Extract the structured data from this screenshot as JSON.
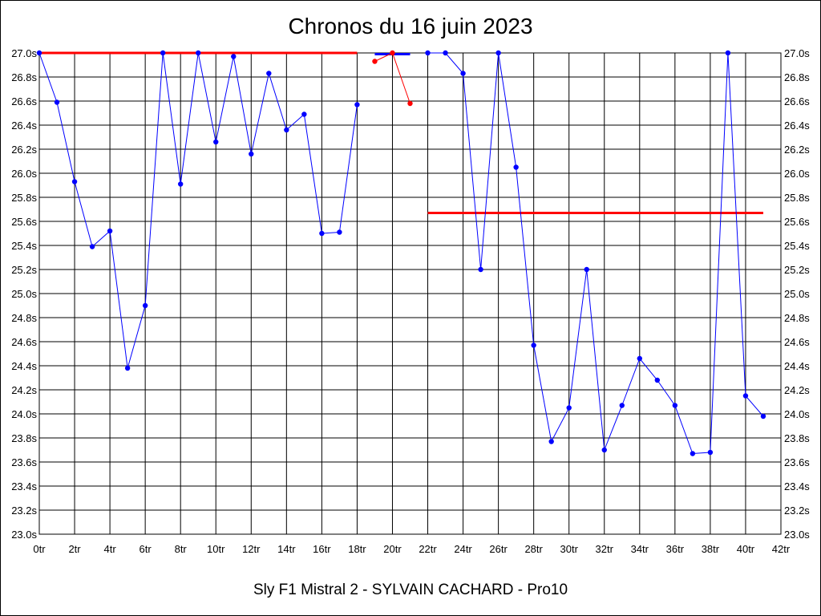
{
  "chart_data": {
    "type": "line",
    "title": "Chronos du 16 juin 2023",
    "subtitle": "Sly F1 Mistral 2 - SYLVAIN CACHARD - Pro10",
    "xlabel": "",
    "ylabel": "",
    "xlim": [
      0,
      42
    ],
    "ylim": [
      23.0,
      27.0
    ],
    "grid": true,
    "x_ticks": [
      "0tr",
      "2tr",
      "4tr",
      "6tr",
      "8tr",
      "10tr",
      "12tr",
      "14tr",
      "16tr",
      "18tr",
      "20tr",
      "22tr",
      "24tr",
      "26tr",
      "28tr",
      "30tr",
      "32tr",
      "34tr",
      "36tr",
      "38tr",
      "40tr",
      "42tr"
    ],
    "y_ticks": [
      "23.0s",
      "23.2s",
      "23.4s",
      "23.6s",
      "23.8s",
      "24.0s",
      "24.2s",
      "24.4s",
      "24.6s",
      "24.8s",
      "25.0s",
      "25.2s",
      "25.4s",
      "25.6s",
      "25.8s",
      "26.0s",
      "26.2s",
      "26.4s",
      "26.6s",
      "26.8s",
      "27.0s"
    ],
    "series": [
      {
        "color": "#0000ff",
        "segments": [
          [
            [
              0,
              27.0
            ],
            [
              1,
              26.59
            ],
            [
              2,
              25.93
            ],
            [
              3,
              25.39
            ],
            [
              4,
              25.52
            ],
            [
              5,
              24.38
            ],
            [
              6,
              24.9
            ],
            [
              7,
              27.0
            ],
            [
              8,
              25.91
            ],
            [
              9,
              27.0
            ],
            [
              10,
              26.26
            ],
            [
              11,
              26.97
            ],
            [
              12,
              26.16
            ],
            [
              13,
              26.83
            ],
            [
              14,
              26.36
            ],
            [
              15,
              26.49
            ],
            [
              16,
              25.5
            ],
            [
              17,
              25.51
            ],
            [
              18,
              26.57
            ]
          ],
          [
            [
              22,
              27.0
            ],
            [
              23,
              27.0
            ],
            [
              24,
              26.83
            ],
            [
              25,
              25.2
            ],
            [
              26,
              27.0
            ],
            [
              27,
              26.05
            ],
            [
              28,
              24.57
            ],
            [
              29,
              23.77
            ],
            [
              30,
              24.05
            ],
            [
              31,
              25.2
            ],
            [
              32,
              23.7
            ],
            [
              33,
              24.07
            ],
            [
              34,
              24.46
            ],
            [
              35,
              24.28
            ],
            [
              36,
              24.07
            ],
            [
              37,
              23.67
            ],
            [
              38,
              23.68
            ],
            [
              39,
              27.0
            ],
            [
              40,
              24.15
            ],
            [
              41,
              23.98
            ]
          ]
        ]
      },
      {
        "color": "#ff0000",
        "segments": [
          [
            [
              19,
              26.93
            ],
            [
              20,
              27.0
            ],
            [
              21,
              26.58
            ]
          ]
        ]
      }
    ],
    "reference_lines": [
      {
        "color": "#ff0000",
        "x": [
          0,
          18
        ],
        "y": 27.0
      },
      {
        "color": "#0000ff",
        "x": [
          19,
          21
        ],
        "y": 26.99
      },
      {
        "color": "#ff0000",
        "x": [
          22,
          41
        ],
        "y": 25.67
      }
    ]
  }
}
